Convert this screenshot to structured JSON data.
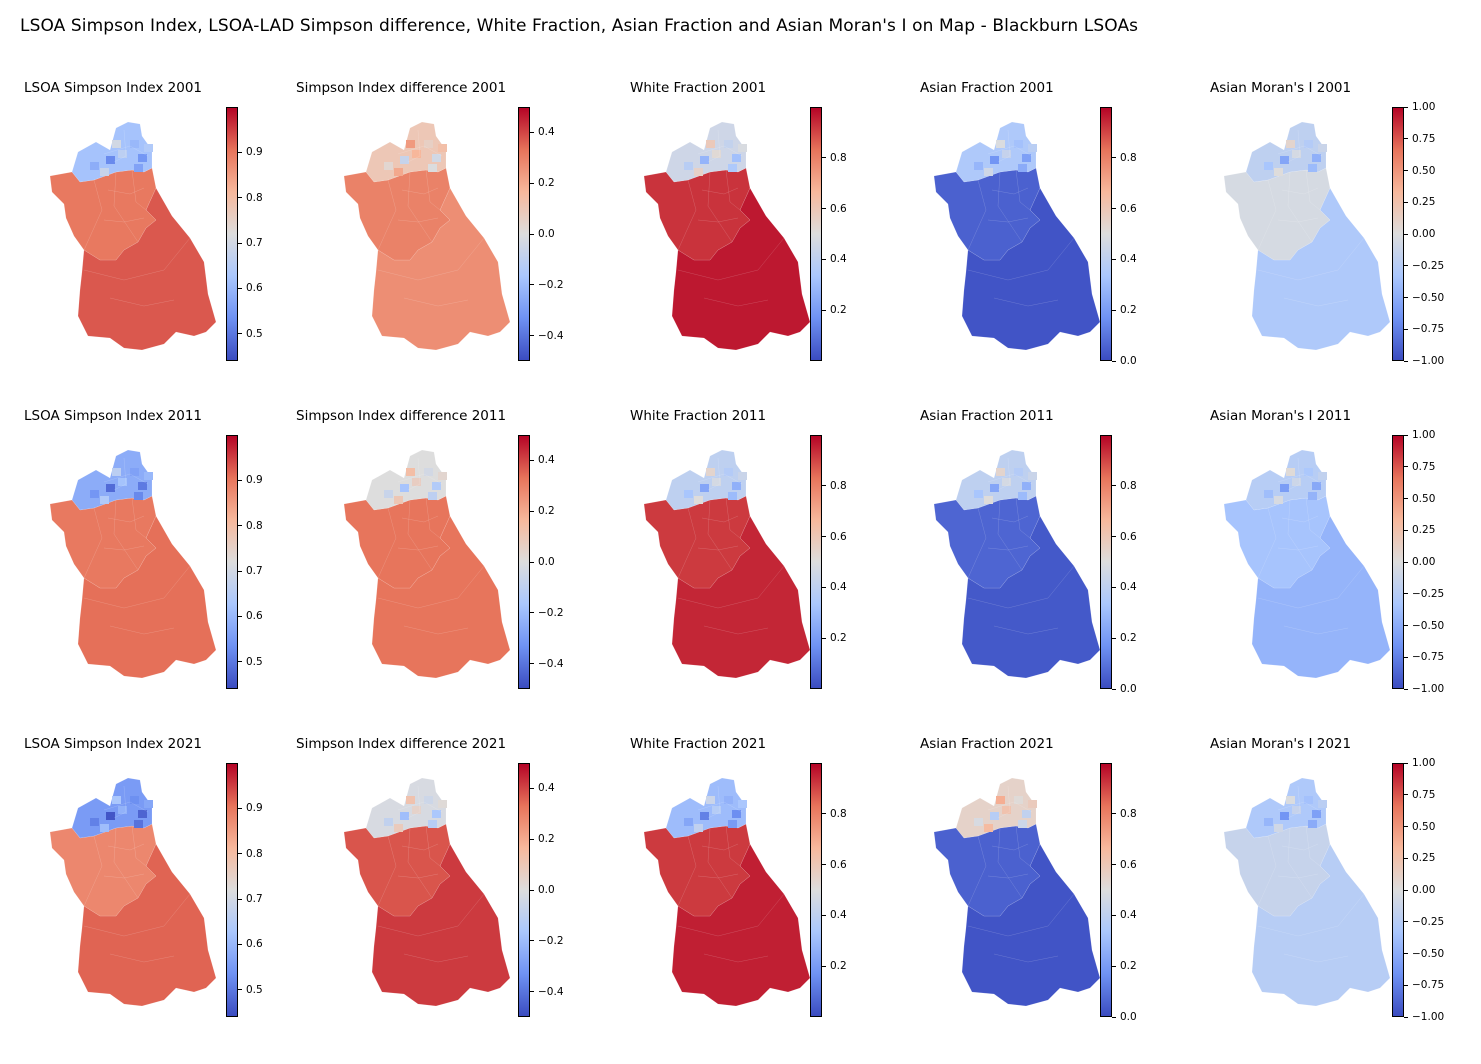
{
  "title": "LSOA Simpson Index, LSOA-LAD Simpson difference, White Fraction, Asian Fraction and Asian Moran's I on Map - Blackburn LSOAs",
  "colormap": "coolwarm",
  "colormap_stops": [
    "#3b4cc0",
    "#6f92f3",
    "#aac7fd",
    "#dddddd",
    "#f7b89c",
    "#e7745b",
    "#b40426"
  ],
  "rows": [
    {
      "year": "2001",
      "panels": [
        {
          "title": "LSOA Simpson Index 2001",
          "range": [
            0.44,
            1.0
          ],
          "ticks": [
            "0.5",
            "0.6",
            "0.7",
            "0.8",
            "0.9"
          ],
          "tick_values": [
            0.5,
            0.6,
            0.7,
            0.8,
            0.9
          ],
          "south_value": 0.93,
          "mid_value": 0.9,
          "north_value": 0.62
        },
        {
          "title": "Simpson Index difference 2001",
          "range": [
            -0.5,
            0.5
          ],
          "ticks": [
            "−0.4",
            "−0.2",
            "0.0",
            "0.2",
            "0.4"
          ],
          "tick_values": [
            -0.4,
            -0.2,
            0.0,
            0.2,
            0.4
          ],
          "south_value": 0.27,
          "mid_value": 0.3,
          "north_value": 0.1
        },
        {
          "title": "White Fraction 2001",
          "range": [
            0.0,
            1.0
          ],
          "ticks": [
            "0.2",
            "0.4",
            "0.6",
            "0.8"
          ],
          "tick_values": [
            0.2,
            0.4,
            0.6,
            0.8
          ],
          "south_value": 0.97,
          "mid_value": 0.93,
          "north_value": 0.45
        },
        {
          "title": "Asian Fraction 2001",
          "range": [
            0.0,
            1.0
          ],
          "ticks": [
            "0.0",
            "0.2",
            "0.4",
            "0.6",
            "0.8"
          ],
          "tick_values": [
            0.0,
            0.2,
            0.4,
            0.6,
            0.8
          ],
          "south_value": 0.02,
          "mid_value": 0.05,
          "north_value": 0.35
        },
        {
          "title": "Asian Moran's I 2001",
          "range": [
            -1.0,
            1.0
          ],
          "ticks": [
            "−1.00",
            "−0.75",
            "−0.50",
            "−0.25",
            "0.00",
            "0.25",
            "0.50",
            "0.75",
            "1.00"
          ],
          "tick_values": [
            -1.0,
            -0.75,
            -0.5,
            -0.25,
            0.0,
            0.25,
            0.5,
            0.75,
            1.0
          ],
          "south_value": -0.3,
          "mid_value": -0.05,
          "north_value": -0.2
        }
      ]
    },
    {
      "year": "2011",
      "panels": [
        {
          "title": "LSOA Simpson Index 2011",
          "range": [
            0.44,
            1.0
          ],
          "ticks": [
            "0.5",
            "0.6",
            "0.7",
            "0.8",
            "0.9"
          ],
          "tick_values": [
            0.5,
            0.6,
            0.7,
            0.8,
            0.9
          ],
          "south_value": 0.91,
          "mid_value": 0.9,
          "north_value": 0.58
        },
        {
          "title": "Simpson Index difference 2011",
          "range": [
            -0.5,
            0.5
          ],
          "ticks": [
            "−0.4",
            "−0.2",
            "0.0",
            "0.2",
            "0.4"
          ],
          "tick_values": [
            -0.4,
            -0.2,
            0.0,
            0.2,
            0.4
          ],
          "south_value": 0.33,
          "mid_value": 0.33,
          "north_value": 0.0
        },
        {
          "title": "White Fraction 2011",
          "range": [
            0.0,
            1.0
          ],
          "ticks": [
            "0.2",
            "0.4",
            "0.6",
            "0.8"
          ],
          "tick_values": [
            0.2,
            0.4,
            0.6,
            0.8
          ],
          "south_value": 0.95,
          "mid_value": 0.92,
          "north_value": 0.4
        },
        {
          "title": "Asian Fraction 2011",
          "range": [
            0.0,
            1.0
          ],
          "ticks": [
            "0.0",
            "0.2",
            "0.4",
            "0.6",
            "0.8"
          ],
          "tick_values": [
            0.0,
            0.2,
            0.4,
            0.6,
            0.8
          ],
          "south_value": 0.03,
          "mid_value": 0.06,
          "north_value": 0.4
        },
        {
          "title": "Asian Moran's I 2011",
          "range": [
            -1.0,
            1.0
          ],
          "ticks": [
            "−1.00",
            "−0.75",
            "−0.50",
            "−0.25",
            "0.00",
            "0.25",
            "0.50",
            "0.75",
            "1.00"
          ],
          "tick_values": [
            -1.0,
            -0.75,
            -0.5,
            -0.25,
            0.0,
            0.25,
            0.5,
            0.75,
            1.0
          ],
          "south_value": -0.45,
          "mid_value": -0.35,
          "north_value": -0.25
        }
      ]
    },
    {
      "year": "2021",
      "panels": [
        {
          "title": "LSOA Simpson Index 2021",
          "range": [
            0.44,
            1.0
          ],
          "ticks": [
            "0.5",
            "0.6",
            "0.7",
            "0.8",
            "0.9"
          ],
          "tick_values": [
            0.5,
            0.6,
            0.7,
            0.8,
            0.9
          ],
          "south_value": 0.92,
          "mid_value": 0.88,
          "north_value": 0.55
        },
        {
          "title": "Simpson Index difference 2021",
          "range": [
            -0.5,
            0.5
          ],
          "ticks": [
            "−0.4",
            "−0.2",
            "0.0",
            "0.2",
            "0.4"
          ],
          "tick_values": [
            -0.4,
            -0.2,
            0.0,
            0.2,
            0.4
          ],
          "south_value": 0.42,
          "mid_value": 0.38,
          "north_value": -0.02
        },
        {
          "title": "White Fraction 2021",
          "range": [
            0.0,
            1.0
          ],
          "ticks": [
            "0.2",
            "0.4",
            "0.6",
            "0.8"
          ],
          "tick_values": [
            0.2,
            0.4,
            0.6,
            0.8
          ],
          "south_value": 0.96,
          "mid_value": 0.92,
          "north_value": 0.3
        },
        {
          "title": "Asian Fraction 2021",
          "range": [
            0.0,
            1.0
          ],
          "ticks": [
            "0.0",
            "0.2",
            "0.4",
            "0.6",
            "0.8"
          ],
          "tick_values": [
            0.0,
            0.2,
            0.4,
            0.6,
            0.8
          ],
          "south_value": 0.02,
          "mid_value": 0.05,
          "north_value": 0.55
        },
        {
          "title": "Asian Moran's I 2021",
          "range": [
            -1.0,
            1.0
          ],
          "ticks": [
            "−1.00",
            "−0.75",
            "−0.50",
            "−0.25",
            "0.00",
            "0.25",
            "0.50",
            "0.75",
            "1.00"
          ],
          "tick_values": [
            -1.0,
            -0.75,
            -0.5,
            -0.25,
            0.0,
            0.25,
            0.5,
            0.75,
            1.0
          ],
          "south_value": -0.25,
          "mid_value": -0.15,
          "north_value": -0.3
        }
      ]
    }
  ]
}
